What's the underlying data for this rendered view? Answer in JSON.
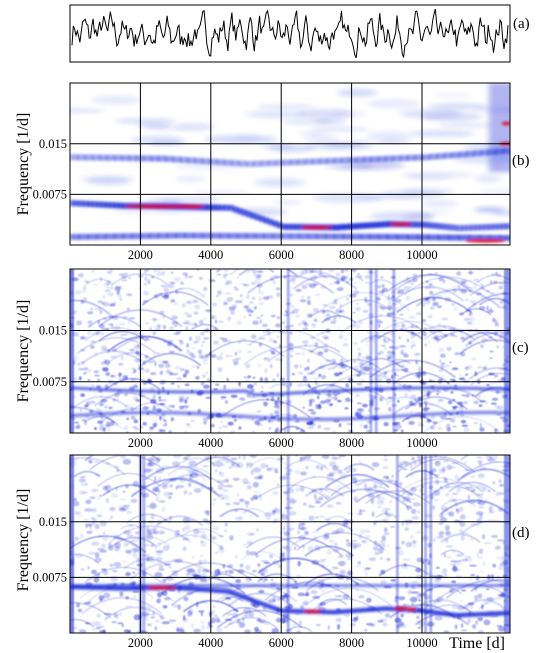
{
  "figure": {
    "xlabel": "Time [d]",
    "ylabel": "Frequency [1/d]"
  },
  "colors": {
    "frame": "#000000",
    "grid": "#000000",
    "low": "#ffffff",
    "mid": "#1a2bd6",
    "high": "#e0102a"
  },
  "chart_data": [
    {
      "panel": "(a)",
      "type": "line",
      "description_hidden": true,
      "x_range": [
        0,
        12500
      ],
      "y_range": [
        -1,
        1
      ],
      "grid": false
    },
    {
      "panel": "(b)",
      "type": "heatmap",
      "x_range": [
        0,
        12500
      ],
      "y_range": [
        0,
        0.024
      ],
      "x_ticks": [
        2000,
        4000,
        6000,
        8000,
        10000
      ],
      "y_ticks": [
        0.0075,
        0.015
      ],
      "x_tick_labels": [
        "2000",
        "4000",
        "6000",
        "8000",
        "10000"
      ],
      "y_tick_labels": [
        "0.0075",
        "0.015"
      ],
      "grid": true,
      "ridges": [
        {
          "t": [
            0,
            1500,
            3000,
            4500,
            6000,
            7500,
            9000,
            10000,
            11000,
            12500
          ],
          "f": [
            0.0062,
            0.0058,
            0.0057,
            0.0055,
            0.0027,
            0.0026,
            0.0031,
            0.003,
            0.0025,
            0.0028
          ],
          "peak": [
            0.55,
            0.75,
            1.0,
            0.6,
            0.7,
            0.85,
            0.8,
            0.6,
            0.4,
            0.5
          ]
        },
        {
          "t": [
            0,
            3000,
            6000,
            9000,
            12500
          ],
          "f": [
            0.0012,
            0.0014,
            0.0013,
            0.0012,
            0.001
          ],
          "peak": [
            0.4,
            0.4,
            0.35,
            0.5,
            0.6
          ]
        },
        {
          "t": [
            0,
            2500,
            5000,
            7500,
            10000,
            12500
          ],
          "f": [
            0.013,
            0.0128,
            0.012,
            0.0125,
            0.013,
            0.014
          ],
          "peak": [
            0.15,
            0.25,
            0.1,
            0.2,
            0.25,
            0.3
          ]
        }
      ]
    },
    {
      "panel": "(c)",
      "type": "heatmap",
      "x_range": [
        0,
        12500
      ],
      "y_range": [
        0,
        0.024
      ],
      "x_ticks": [
        2000,
        4000,
        6000,
        8000,
        10000
      ],
      "y_ticks": [
        0.0075,
        0.015
      ],
      "x_tick_labels": [
        "2000",
        "4000",
        "6000",
        "8000",
        "10000"
      ],
      "y_tick_labels": [
        "0.0075",
        "0.015"
      ],
      "grid": true
    },
    {
      "panel": "(d)",
      "type": "heatmap",
      "x_range": [
        0,
        12500
      ],
      "y_range": [
        0,
        0.024
      ],
      "x_ticks": [
        2000,
        4000,
        6000,
        8000,
        10000
      ],
      "y_ticks": [
        0.0075,
        0.015
      ],
      "x_tick_labels": [
        "2000",
        "4000",
        "6000",
        "8000",
        "10000"
      ],
      "y_tick_labels": [
        "0.0075",
        "0.015"
      ],
      "grid": true,
      "ridges": [
        {
          "t": [
            0,
            1500,
            3000,
            4500,
            6000,
            7500,
            9000,
            10000,
            11000,
            12500
          ],
          "f": [
            0.0062,
            0.006,
            0.0061,
            0.0056,
            0.003,
            0.0028,
            0.0033,
            0.003,
            0.0024,
            0.0027
          ],
          "peak": [
            0.6,
            0.7,
            0.9,
            0.6,
            0.65,
            0.9,
            0.8,
            0.85,
            0.5,
            0.5
          ]
        }
      ]
    }
  ]
}
